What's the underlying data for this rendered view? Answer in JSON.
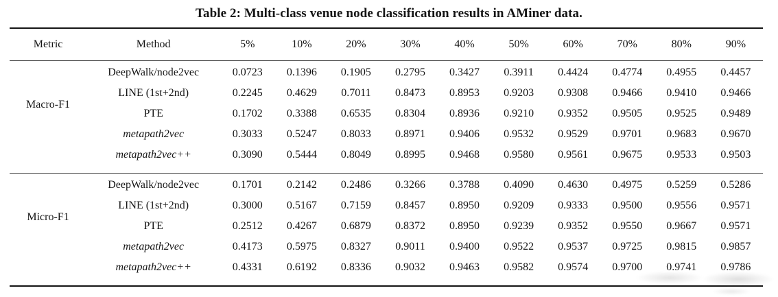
{
  "title": "Table 2: Multi-class venue node classification results in AMiner data.",
  "table": {
    "headers": [
      "Metric",
      "Method",
      "5%",
      "10%",
      "20%",
      "30%",
      "40%",
      "50%",
      "60%",
      "70%",
      "80%",
      "90%"
    ],
    "groups": [
      {
        "metric": "Macro-F1",
        "rows": [
          {
            "method": "DeepWalk/node2vec",
            "italic": false,
            "values": [
              "0.0723",
              "0.1396",
              "0.1905",
              "0.2795",
              "0.3427",
              "0.3911",
              "0.4424",
              "0.4774",
              "0.4955",
              "0.4457"
            ]
          },
          {
            "method": "LINE (1st+2nd)",
            "italic": false,
            "values": [
              "0.2245",
              "0.4629",
              "0.7011",
              "0.8473",
              "0.8953",
              "0.9203",
              "0.9308",
              "0.9466",
              "0.9410",
              "0.9466"
            ]
          },
          {
            "method": "PTE",
            "italic": false,
            "values": [
              "0.1702",
              "0.3388",
              "0.6535",
              "0.8304",
              "0.8936",
              "0.9210",
              "0.9352",
              "0.9505",
              "0.9525",
              "0.9489"
            ]
          },
          {
            "method": "metapath2vec",
            "italic": true,
            "values": [
              "0.3033",
              "0.5247",
              "0.8033",
              "0.8971",
              "0.9406",
              "0.9532",
              "0.9529",
              "0.9701",
              "0.9683",
              "0.9670"
            ]
          },
          {
            "method": "metapath2vec++",
            "italic": true,
            "values": [
              "0.3090",
              "0.5444",
              "0.8049",
              "0.8995",
              "0.9468",
              "0.9580",
              "0.9561",
              "0.9675",
              "0.9533",
              "0.9503"
            ]
          }
        ]
      },
      {
        "metric": "Micro-F1",
        "rows": [
          {
            "method": "DeepWalk/node2vec",
            "italic": false,
            "values": [
              "0.1701",
              "0.2142",
              "0.2486",
              "0.3266",
              "0.3788",
              "0.4090",
              "0.4630",
              "0.4975",
              "0.5259",
              "0.5286"
            ]
          },
          {
            "method": "LINE (1st+2nd)",
            "italic": false,
            "values": [
              "0.3000",
              "0.5167",
              "0.7159",
              "0.8457",
              "0.8950",
              "0.9209",
              "0.9333",
              "0.9500",
              "0.9556",
              "0.9571"
            ]
          },
          {
            "method": "PTE",
            "italic": false,
            "values": [
              "0.2512",
              "0.4267",
              "0.6879",
              "0.8372",
              "0.8950",
              "0.9239",
              "0.9352",
              "0.9550",
              "0.9667",
              "0.9571"
            ]
          },
          {
            "method": "metapath2vec",
            "italic": true,
            "values": [
              "0.4173",
              "0.5975",
              "0.8327",
              "0.9011",
              "0.9400",
              "0.9522",
              "0.9537",
              "0.9725",
              "0.9815",
              "0.9857"
            ]
          },
          {
            "method": "metapath2vec++",
            "italic": true,
            "values": [
              "0.4331",
              "0.6192",
              "0.8336",
              "0.9032",
              "0.9463",
              "0.9582",
              "0.9574",
              "0.9700",
              "0.9741",
              "0.9786"
            ]
          }
        ]
      }
    ]
  }
}
